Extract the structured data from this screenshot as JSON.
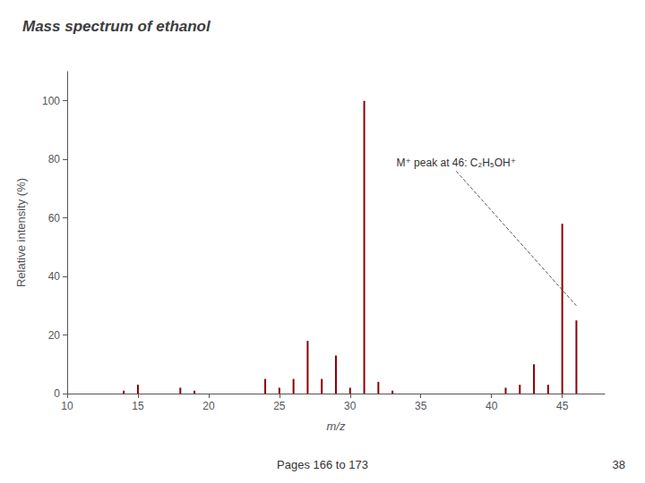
{
  "chart_data": {
    "type": "bar",
    "title": "Mass spectrum of ethanol",
    "xlabel": "m/z",
    "ylabel": "Relative intensity (%)",
    "x": [
      14,
      15,
      18,
      19,
      24,
      25,
      26,
      27,
      28,
      29,
      30,
      31,
      32,
      33,
      41,
      42,
      43,
      44,
      45,
      46
    ],
    "values": [
      1,
      3,
      2,
      1,
      5,
      2,
      5,
      18,
      5,
      13,
      2,
      100,
      4,
      1,
      2,
      3,
      10,
      3,
      58,
      25
    ],
    "color": "#8b0000",
    "xlim": [
      10,
      48
    ],
    "xticks": [
      10,
      15,
      20,
      25,
      30,
      35,
      40,
      45
    ],
    "ylim": [
      0,
      110
    ],
    "yticks": [
      0,
      20,
      40,
      60,
      80,
      100
    ],
    "grid": false,
    "annotations": [
      {
        "text": "M⁺ peak at 46: C₂H₅OH⁺",
        "xy": [
          46.0,
          30.0
        ],
        "xytext": [
          37.5,
          76
        ]
      }
    ],
    "footer": [
      "Pages 166 to 173",
      "38"
    ]
  }
}
